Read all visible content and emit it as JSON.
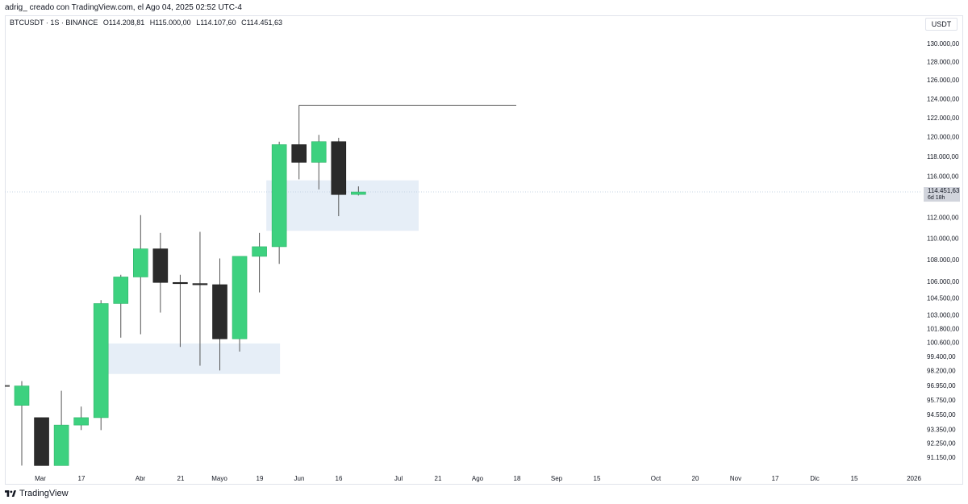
{
  "header": {
    "caption": "adrig_ creado con TradingView.com, el Ago 04, 2025 02:52 UTC-4"
  },
  "legend": {
    "symbol": "BTCUSDT · 1S · BINANCE",
    "open": "O114.208,81",
    "high": "H115.000,00",
    "low": "L114.107,60",
    "close": "C114.451,63"
  },
  "currency_label": "USDT",
  "price_tag": {
    "price": "114.451,63",
    "countdown": "6d 18h"
  },
  "footer": {
    "brand": "TradingView"
  },
  "colors": {
    "up": "#3dd17f",
    "down": "#2b2b2b",
    "zone": "#e6eef7",
    "tag": "#d1d4dc"
  },
  "chart_data": {
    "type": "candlestick",
    "axis": {
      "price_labels": [
        "130.000,00",
        "128.000,00",
        "126.000,00",
        "124.000,00",
        "122.000,00",
        "120.000,00",
        "118.000,00",
        "116.000,00",
        "112.000,00",
        "110.000,00",
        "108.000,00",
        "106.000,00",
        "104.500,00",
        "103.000,00",
        "101.800,00",
        "100.600,00",
        "99.400,00",
        "98.200,00",
        "96.950,00",
        "95.750,00",
        "94.550,00",
        "93.350,00",
        "92.250,00",
        "91.150,00"
      ],
      "time_labels": [
        "Mar",
        "17",
        "Abr",
        "21",
        "Mayo",
        "19",
        "Jun",
        "16",
        "Jul",
        "21",
        "Ago",
        "18",
        "Sep",
        "15",
        "Oct",
        "20",
        "Nov",
        "17",
        "Dic",
        "15",
        "2026"
      ]
    },
    "candles": [
      {
        "o": 95300,
        "h": 97300,
        "l": 90500,
        "c": 96900
      },
      {
        "o": 94300,
        "h": 94300,
        "l": 90500,
        "c": 90500
      },
      {
        "o": 90500,
        "h": 96500,
        "l": 90500,
        "c": 93700
      },
      {
        "o": 93700,
        "h": 95200,
        "l": 93300,
        "c": 94300
      },
      {
        "o": 94300,
        "h": 104300,
        "l": 93300,
        "c": 104000
      },
      {
        "o": 104000,
        "h": 106600,
        "l": 101000,
        "c": 106400
      },
      {
        "o": 106400,
        "h": 112200,
        "l": 101300,
        "c": 109000
      },
      {
        "o": 109000,
        "h": 110500,
        "l": 103200,
        "c": 105900
      },
      {
        "o": 105900,
        "h": 106600,
        "l": 100200,
        "c": 105800
      },
      {
        "o": 105800,
        "h": 110600,
        "l": 98600,
        "c": 105700
      },
      {
        "o": 105700,
        "h": 108100,
        "l": 98200,
        "c": 100900
      },
      {
        "o": 100900,
        "h": 108300,
        "l": 99800,
        "c": 108300
      },
      {
        "o": 108300,
        "h": 110500,
        "l": 105000,
        "c": 109200
      },
      {
        "o": 109200,
        "h": 119500,
        "l": 107600,
        "c": 119200
      },
      {
        "o": 119200,
        "h": 123300,
        "l": 115700,
        "c": 117400
      },
      {
        "o": 117400,
        "h": 120200,
        "l": 114700,
        "c": 119500
      },
      {
        "o": 119500,
        "h": 119900,
        "l": 112100,
        "c": 114200
      },
      {
        "o": 114209,
        "h": 115000,
        "l": 114108,
        "c": 114452
      }
    ],
    "zones": [
      {
        "from": 5,
        "to": 13,
        "low": 97900,
        "high": 100500
      },
      {
        "from": 13,
        "to": 20,
        "low": 110700,
        "high": 115600
      }
    ],
    "high_line": {
      "from": 14,
      "to": 19,
      "price": 123300
    },
    "current_price": 114452,
    "grid": false
  }
}
